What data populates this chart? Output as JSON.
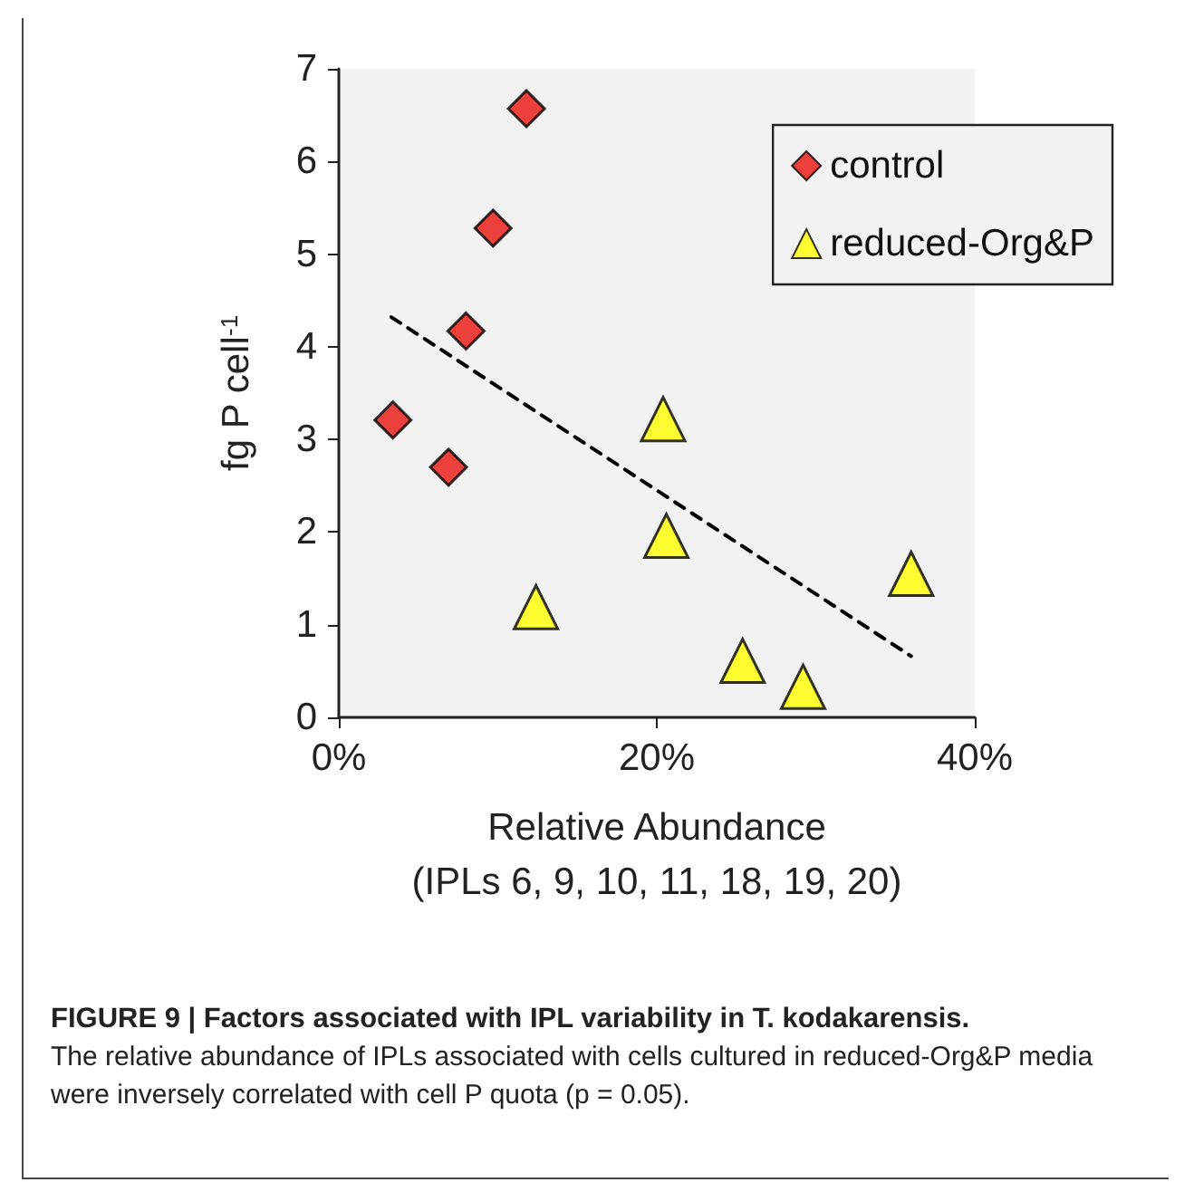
{
  "chart_data": {
    "type": "scatter",
    "title": "FIGURE 9 | Factors associated with IPL variability in T. kodakarensis.",
    "annotations": [
      "The relative abundance of IPLs associated with cells cultured in reduced-Org&P media were inversely correlated with cell P quota (p = 0.05)."
    ],
    "xlabel": "Relative Abundance\n(IPLs 6, 9, 10, 11, 18, 19, 20)",
    "ylabel": "fg P cell$^{-1}$",
    "series": [
      {
        "name": "control",
        "color": "#e8130e",
        "marker": "diamond",
        "x": [
          3.4,
          6.9,
          8.0,
          9.7,
          11.8
        ],
        "values": [
          3.21,
          2.7,
          4.17,
          5.28,
          6.57
        ]
      },
      {
        "name": "reduced-Org&P",
        "color": "#ffff00",
        "marker": "triangle",
        "x": [
          12.4,
          20.4,
          20.6,
          25.4,
          29.2,
          36.0
        ],
        "values": [
          1.19,
          3.22,
          1.96,
          0.61,
          0.33,
          1.55
        ]
      },
      {
        "type": "line",
        "color": "#000000",
        "line_style": "dashed",
        "marker": "none",
        "x": [
          3.3,
          36.0
        ],
        "values": [
          4.32,
          0.66
        ]
      }
    ],
    "xlim": [
      0,
      40
    ],
    "xticks": [
      {
        "value": 0,
        "label": "0%"
      },
      {
        "value": 20,
        "label": "20%"
      },
      {
        "value": 40,
        "label": "40%"
      }
    ],
    "ylim": [
      0,
      7
    ],
    "yticks": [
      0,
      1,
      2,
      3,
      4,
      5,
      6,
      7
    ],
    "grid": false,
    "legend": "top right"
  }
}
